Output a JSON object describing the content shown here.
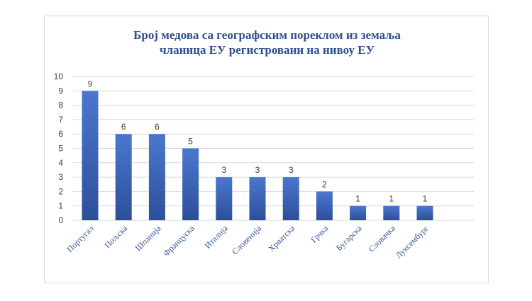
{
  "chart_data": {
    "type": "bar",
    "title_lines": [
      "Број медова са географским пореклом из земаља",
      "чланица ЕУ регистровани на нивоу ЕУ"
    ],
    "categories": [
      "Португал",
      "Пољска",
      "Шпанија",
      "Француска",
      "Италија",
      "Словенија",
      "Хрватска",
      "Грчка",
      "Бугарска",
      "Словачка",
      "Луксембург"
    ],
    "values": [
      9,
      6,
      6,
      5,
      3,
      3,
      3,
      2,
      1,
      1,
      1
    ],
    "xlabel": "",
    "ylabel": "",
    "ylim": [
      0,
      10
    ],
    "yticks": [
      0,
      1,
      2,
      3,
      4,
      5,
      6,
      7,
      8,
      9,
      10
    ],
    "grid": true,
    "legend": "none",
    "data_labels": true,
    "colors": {
      "bar_top": "#4a78cf",
      "bar_bottom": "#2c4f99",
      "title": "#2f4e8c",
      "gridline": "#d9d9d9"
    }
  }
}
